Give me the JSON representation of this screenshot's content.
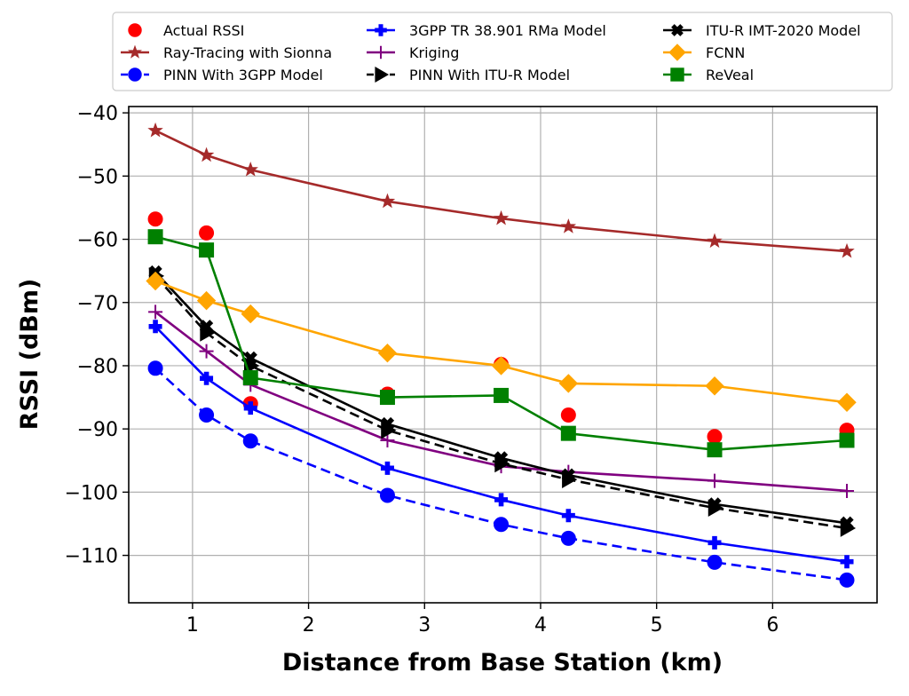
{
  "chart_data": {
    "type": "line",
    "title": "",
    "xlabel": "Distance from Base Station (km)",
    "ylabel": "RSSI (dBm)",
    "xlim": [
      0.45,
      6.9
    ],
    "ylim": [
      -117.5,
      -39
    ],
    "xticks": [
      1,
      2,
      3,
      4,
      5,
      6
    ],
    "xtick_labels": [
      "1",
      "2",
      "3",
      "4",
      "5",
      "6"
    ],
    "yticks": [
      -110,
      -100,
      -90,
      -80,
      -70,
      -60,
      -50,
      -40
    ],
    "ytick_labels": [
      "−110",
      "−100",
      "−90",
      "−80",
      "−70",
      "−60",
      "−50",
      "−40"
    ],
    "grid": true,
    "legend_position": "top",
    "x": [
      0.68,
      1.12,
      1.5,
      2.68,
      3.66,
      4.24,
      5.5,
      6.64
    ],
    "series": [
      {
        "name": "Actual RSSI",
        "color": "#ff0000",
        "marker": "circle",
        "line": "none",
        "values": [
          -56.8,
          -59.0,
          -86.0,
          -84.5,
          -79.8,
          -87.8,
          -91.2,
          -90.2
        ]
      },
      {
        "name": "Ray-Tracing with Sionna",
        "color": "#a52a2a",
        "marker": "star",
        "line": "solid",
        "values": [
          -42.8,
          -46.7,
          -49.0,
          -54.0,
          -56.7,
          -58.0,
          -60.3,
          -61.9
        ]
      },
      {
        "name": "PINN With 3GPP Model",
        "color": "#0000ff",
        "marker": "circle",
        "line": "dashed",
        "values": [
          -80.4,
          -87.8,
          -91.9,
          -100.5,
          -105.1,
          -107.3,
          -111.1,
          -113.9
        ]
      },
      {
        "name": "3GPP TR 38.901 RMa Model",
        "color": "#0000ff",
        "marker": "plus-thick",
        "line": "solid",
        "values": [
          -73.8,
          -82.0,
          -86.7,
          -96.2,
          -101.2,
          -103.7,
          -108.0,
          -111.0
        ]
      },
      {
        "name": "Kriging",
        "color": "#800080",
        "marker": "plus-thin",
        "line": "solid",
        "values": [
          -71.5,
          -77.7,
          -83.0,
          -91.8,
          -95.9,
          -96.8,
          -98.2,
          -99.8
        ]
      },
      {
        "name": "PINN With ITU-R Model",
        "color": "#000000",
        "marker": "triangle-right",
        "line": "dashed",
        "values": [
          -65.8,
          -74.8,
          -80.0,
          -90.2,
          -95.5,
          -98.0,
          -102.5,
          -105.7
        ]
      },
      {
        "name": "ITU-R IMT-2020 Model",
        "color": "#000000",
        "marker": "x-thick",
        "line": "solid",
        "values": [
          -65.2,
          -73.8,
          -78.8,
          -89.2,
          -94.6,
          -97.3,
          -101.9,
          -104.9
        ]
      },
      {
        "name": "FCNN",
        "color": "#ffa500",
        "marker": "diamond",
        "line": "solid",
        "values": [
          -66.6,
          -69.7,
          -71.8,
          -78.0,
          -80.0,
          -82.8,
          -83.2,
          -85.8
        ]
      },
      {
        "name": "ReVeal",
        "color": "#008000",
        "marker": "square",
        "line": "solid",
        "values": [
          -59.6,
          -61.7,
          -81.9,
          -85.0,
          -84.7,
          -90.7,
          -93.3,
          -91.8
        ]
      }
    ]
  }
}
